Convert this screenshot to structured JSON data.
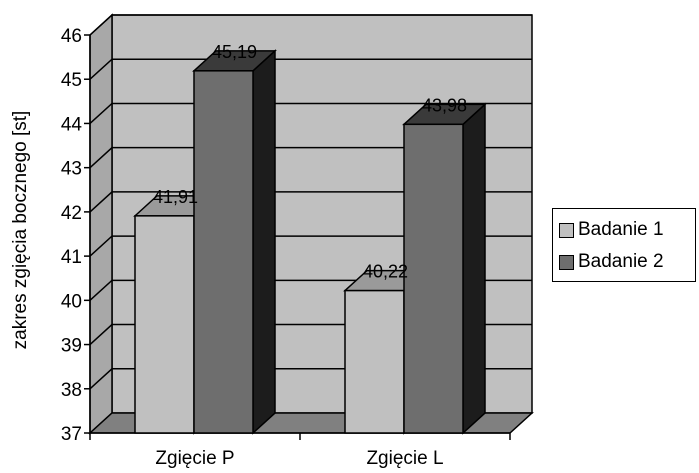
{
  "chart_data": {
    "type": "bar",
    "categories": [
      "Zgięcie P",
      "Zgięcie L"
    ],
    "series": [
      {
        "name": "Badanie 1",
        "values": [
          41.91,
          40.22
        ],
        "labels": [
          "41,91",
          "40,22"
        ],
        "color": "#c0c0c0"
      },
      {
        "name": "Badanie 2",
        "values": [
          45.19,
          43.98
        ],
        "labels": [
          "45,19",
          "43,98"
        ],
        "color": "#6e6e6e"
      }
    ],
    "ylabel": "zakres zgięcia bocznego [st]",
    "xlabel": "",
    "ylim": [
      37,
      46
    ],
    "yticks": [
      "37",
      "38",
      "39",
      "40",
      "41",
      "42",
      "43",
      "44",
      "45",
      "46"
    ],
    "grid": true,
    "legend": "right",
    "style": "3d",
    "wall_color": "#c0c0c0",
    "floor_color": "#808080"
  }
}
